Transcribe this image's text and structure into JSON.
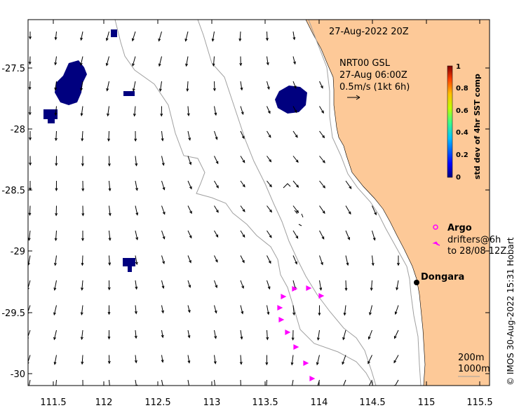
{
  "title": "27-Aug-2022 20Z",
  "current_info": {
    "line1": "NRT00 GSL",
    "line2": "27-Aug 06:00Z",
    "line3": "0.5m/s (1kt 6h)"
  },
  "colorbar": {
    "title": "std dev of 4hr SST comp",
    "ticks": [
      "0",
      "0.2",
      "0.4",
      "0.6",
      "0.8",
      "1"
    ]
  },
  "legend": {
    "argo_label": "Argo",
    "drifters_line1": "drifters@6h",
    "drifters_line2": "to 28/08 12Z"
  },
  "place_label": "Dongara",
  "contours": {
    "line1": "200m",
    "line2": "1000m"
  },
  "credit": "© IMOS 30-Aug-2022 15:31 Hobart",
  "x_ticks": [
    "111.5",
    "112",
    "112.5",
    "113",
    "113.5",
    "114",
    "114.5",
    "115",
    "115.5"
  ],
  "y_ticks": [
    "-27.5",
    "-28",
    "-28.5",
    "-29",
    "-29.5",
    "-30"
  ],
  "colors": {
    "land": "#fdc998",
    "cloud": "#00007f",
    "drifter": "#ff00ff",
    "bathymetry": "#a0a0a0",
    "arrow": "#000000"
  },
  "icons": [
    "current-arrow-icon",
    "argo-float-icon",
    "drifter-track-icon",
    "town-marker-icon"
  ]
}
